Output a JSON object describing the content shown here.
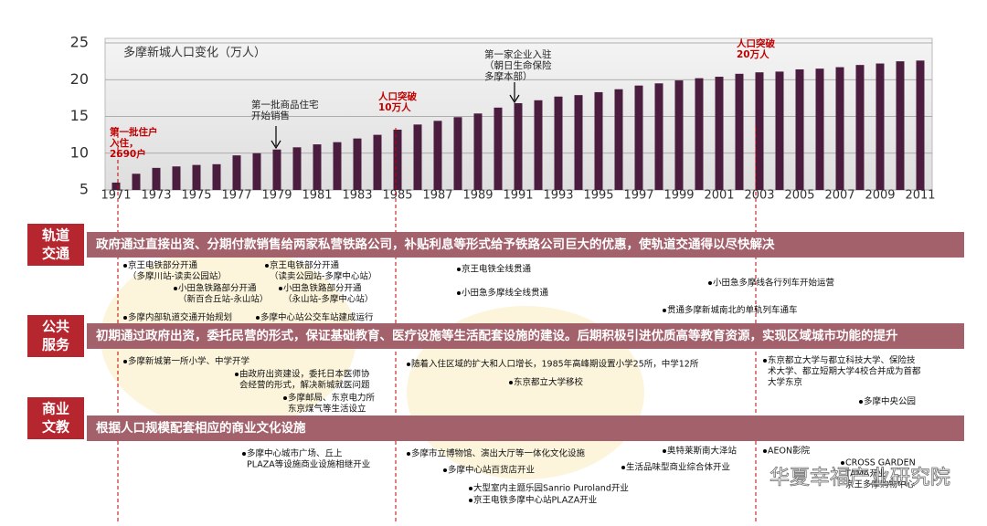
{
  "chart_data": {
    "type": "bar",
    "title": "多摩新城人口变化（万人）",
    "categories": [
      "1971",
      null,
      "1973",
      null,
      "1975",
      null,
      "1977",
      null,
      "1979",
      null,
      "1981",
      null,
      "1983",
      null,
      "1985",
      null,
      "1987",
      null,
      "1989",
      null,
      "1991",
      null,
      "1993",
      null,
      "1995",
      null,
      "1997",
      null,
      "1999",
      null,
      "2001",
      null,
      "2003",
      null,
      "2005",
      null,
      "2007",
      null,
      "2009",
      null,
      "2011"
    ],
    "values": [
      6.0,
      7.2,
      8.0,
      8.2,
      8.4,
      8.5,
      9.7,
      10.0,
      10.5,
      10.8,
      11.2,
      11.5,
      12.0,
      12.5,
      13.2,
      13.9,
      14.4,
      14.9,
      15.4,
      16.2,
      16.8,
      17.2,
      17.7,
      17.9,
      18.3,
      18.7,
      19.2,
      19.5,
      19.9,
      20.2,
      20.4,
      20.8,
      21.0,
      21.1,
      21.4,
      21.5,
      21.7,
      22.0,
      22.2,
      22.5,
      22.6
    ],
    "color": "#4a1d3f",
    "ylim": [
      5,
      25
    ],
    "yticks": [
      5,
      10,
      15,
      20,
      25
    ],
    "grid": true,
    "annotations": [
      {
        "lines": [
          "第一批住户",
          "入住，",
          "2690户"
        ],
        "color": "#c00000"
      },
      {
        "lines": [
          "第一批商品住宅",
          "开始销售"
        ],
        "color": "#222222"
      },
      {
        "lines": [
          "人口突破",
          "10万人"
        ],
        "color": "#c00000"
      },
      {
        "lines": [
          "第一家企业入驻",
          "（朝日生命保险",
          "多摩本部）"
        ],
        "color": "#222222"
      },
      {
        "lines": [
          "人口突破",
          "20万人"
        ],
        "color": "#c00000"
      }
    ]
  },
  "sections": [
    {
      "label": [
        "轨道",
        "交通"
      ],
      "banner": "政府通过直接出资、分期付款销售给两家私营铁路公司，补贴利息等形式给予铁路公司巨大的优惠，使轨道交通得以尽快解决",
      "items": [
        [
          "京王电铁部分开通",
          "（多摩川站-读卖公园站）"
        ],
        [
          "小田急铁路部分开通",
          "（新百合丘站-永山站）"
        ],
        [
          "多摩内部轨道交通开始规划"
        ],
        [
          "京王电铁部分开通",
          "（读卖公园站-多摩中心站）"
        ],
        [
          "小田急铁路部分开通",
          "（永山站-多摩中心站）"
        ],
        [
          "多摩中心站公交车站建成运行"
        ],
        [
          "京王电铁全线贯通"
        ],
        [
          "小田急多摩线全线贯通"
        ],
        [
          "小田急多摩线各行列车开始运营"
        ],
        [
          "贯通多摩新城南北的单轨列车通车"
        ]
      ]
    },
    {
      "label": [
        "公共",
        "服务"
      ],
      "banner": "初期通过政府出资，委托民营的形式，保证基础教育、医疗设施等生活配套设施的建设。后期积极引进优质高等教育资源，实现区域城市功能的提升",
      "items": [
        [
          "多摩新城第一所小学、中学开学"
        ],
        [
          "由政府出资建设，委托日本医师协",
          "会经营的形式，解决新城就医问题"
        ],
        [
          "多摩邮局、东京电力所",
          "东京煤气等生活设立"
        ],
        [
          "随着入住区域的扩大和人口增长，1985年高峰期设置小学25所，中学12所"
        ],
        [
          "东京都立大学移校"
        ],
        [
          "东京都立大学与都立科技大学、保险技",
          "术大学、都立短期大学4校合并成为首都",
          "大学东京"
        ],
        [
          "多摩中央公园"
        ]
      ]
    },
    {
      "label": [
        "商业",
        "文教"
      ],
      "banner": "根据人口规模配套相应的商业文化设施",
      "items": [
        [
          "多摩中心城市广场、丘上",
          "PLAZA等设施商业设施相继开业"
        ],
        [
          "多摩市立博物馆、演出大厅等一体化文化设施"
        ],
        [
          "多摩中心站百货店开业"
        ],
        [
          "大型室内主题乐园Sanrio Puroland开业"
        ],
        [
          "京王电铁多摩中心站PLAZA开业"
        ],
        [
          "奥特莱斯南大泽站"
        ],
        [
          "生活品味型商业综合体开业"
        ],
        [
          "AEON影院"
        ],
        [
          "CROSS GARDEN",
          "TAMA开业",
          "京王多摩购物中心"
        ]
      ]
    }
  ],
  "watermark": "华夏幸福产业研究院"
}
